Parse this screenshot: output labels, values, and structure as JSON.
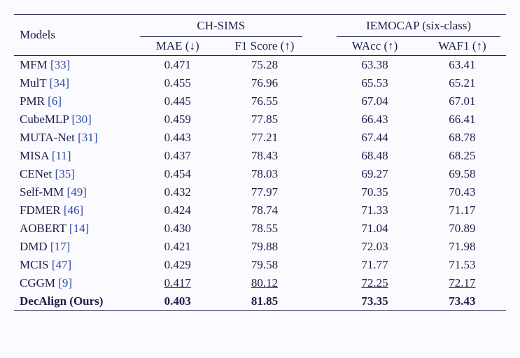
{
  "background_color": "#fbfafe",
  "text_color": "#1a1f4a",
  "ref_color": "#2b4aa8",
  "font_family": "Times New Roman",
  "headers": {
    "models": "Models",
    "dataset1": "CH-SIMS",
    "dataset2": "IEMOCAP (six-class)",
    "mae": "MAE (↓)",
    "f1": "F1 Score (↑)",
    "wacc": "WAcc (↑)",
    "waf1": "WAF1 (↑)"
  },
  "rows": [
    {
      "name": "MFM",
      "ref": "[33]",
      "mae": "0.471",
      "f1": "75.28",
      "wacc": "63.38",
      "waf1": "63.41",
      "style": "normal"
    },
    {
      "name": "MulT",
      "ref": "[34]",
      "mae": "0.455",
      "f1": "76.96",
      "wacc": "65.53",
      "waf1": "65.21",
      "style": "normal"
    },
    {
      "name": "PMR",
      "ref": "[6]",
      "mae": "0.445",
      "f1": "76.55",
      "wacc": "67.04",
      "waf1": "67.01",
      "style": "normal"
    },
    {
      "name": "CubeMLP",
      "ref": "[30]",
      "mae": "0.459",
      "f1": "77.85",
      "wacc": "66.43",
      "waf1": "66.41",
      "style": "normal"
    },
    {
      "name": "MUTA-Net",
      "ref": "[31]",
      "mae": "0.443",
      "f1": "77.21",
      "wacc": "67.44",
      "waf1": "68.78",
      "style": "normal"
    },
    {
      "name": "MISA",
      "ref": "[11]",
      "mae": "0.437",
      "f1": "78.43",
      "wacc": "68.48",
      "waf1": "68.25",
      "style": "normal"
    },
    {
      "name": "CENet",
      "ref": "[35]",
      "mae": "0.454",
      "f1": "78.03",
      "wacc": "69.27",
      "waf1": "69.58",
      "style": "normal"
    },
    {
      "name": "Self-MM",
      "ref": "[49]",
      "mae": "0.432",
      "f1": "77.97",
      "wacc": "70.35",
      "waf1": "70.43",
      "style": "normal"
    },
    {
      "name": "FDMER",
      "ref": "[46]",
      "mae": "0.424",
      "f1": "78.74",
      "wacc": "71.33",
      "waf1": "71.17",
      "style": "normal"
    },
    {
      "name": "AOBERT",
      "ref": "[14]",
      "mae": "0.430",
      "f1": "78.55",
      "wacc": "71.04",
      "waf1": "70.89",
      "style": "normal"
    },
    {
      "name": "DMD",
      "ref": "[17]",
      "mae": "0.421",
      "f1": "79.88",
      "wacc": "72.03",
      "waf1": "71.98",
      "style": "normal"
    },
    {
      "name": "MCIS",
      "ref": "[47]",
      "mae": "0.429",
      "f1": "79.58",
      "wacc": "71.77",
      "waf1": "71.53",
      "style": "normal"
    },
    {
      "name": "CGGM",
      "ref": "[9]",
      "mae": "0.417",
      "f1": "80.12",
      "wacc": "72.25",
      "waf1": "72.17",
      "style": "underline"
    },
    {
      "name": "DecAlign (Ours)",
      "ref": "",
      "mae": "0.403",
      "f1": "81.85",
      "wacc": "73.35",
      "waf1": "73.43",
      "style": "bold"
    }
  ]
}
